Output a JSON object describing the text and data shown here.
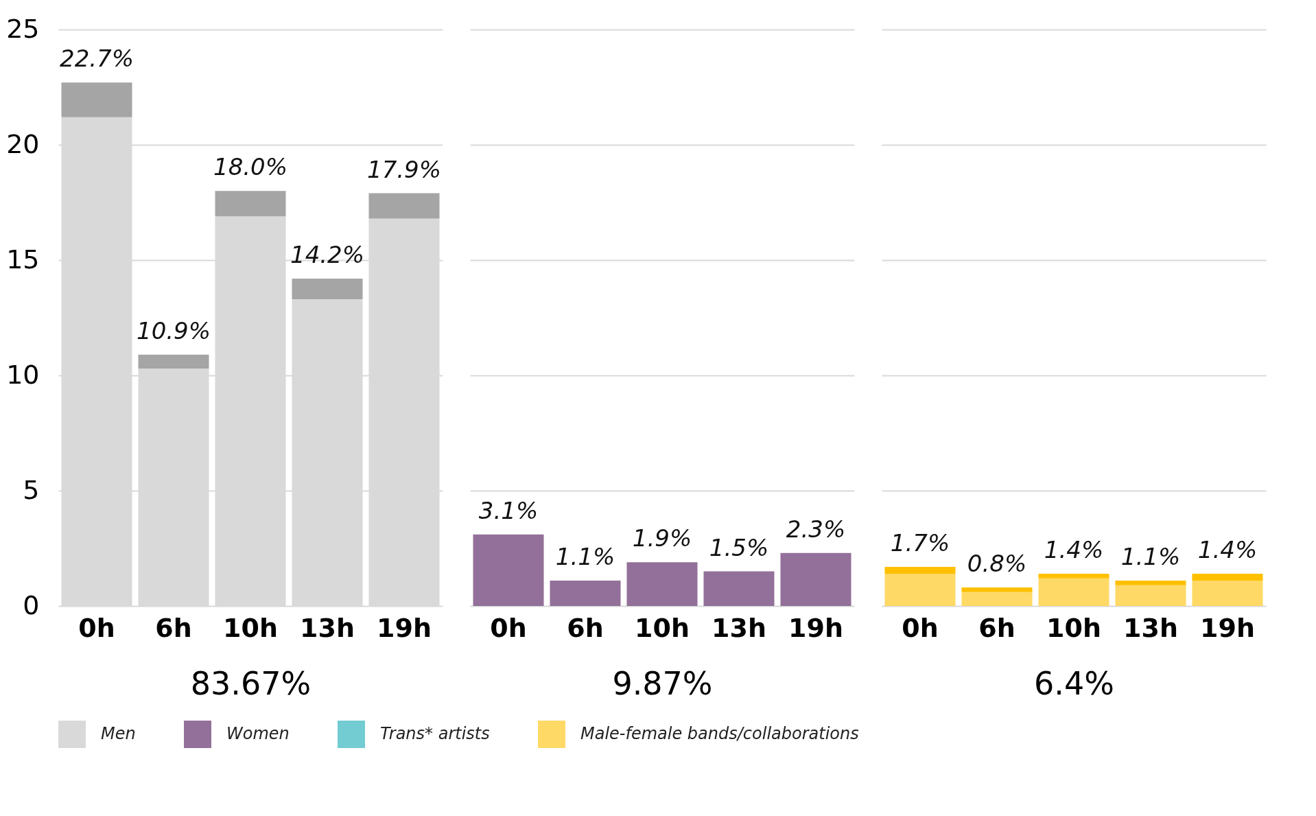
{
  "chart_data": [
    {
      "type": "bar",
      "stacked": true,
      "categories": [
        "0h",
        "6h",
        "10h",
        "13h",
        "19h"
      ],
      "series": [
        {
          "name": "Men",
          "color": "#d9d9d9",
          "values": [
            21.2,
            10.3,
            16.9,
            13.3,
            16.8
          ]
        },
        {
          "color": "#a5a5a5",
          "values": [
            1.5,
            0.6,
            1.1,
            0.9,
            1.1
          ]
        }
      ],
      "totals": [
        "22.7%",
        "10.9%",
        "18.0%",
        "14.2%",
        "17.9%"
      ],
      "xlabel": "83.67%",
      "ylim": [
        0,
        25
      ],
      "yticks": [
        0,
        5,
        10,
        15,
        20,
        25
      ],
      "grid": "y",
      "legend": "bottom"
    },
    {
      "type": "bar",
      "stacked": true,
      "categories": [
        "0h",
        "6h",
        "10h",
        "13h",
        "19h"
      ],
      "series": [
        {
          "name": "Women",
          "color": "#937099",
          "values": [
            3.1,
            1.1,
            1.9,
            1.5,
            2.3
          ]
        },
        {
          "name": "Trans* artists",
          "color": "#72ccd2",
          "values": [
            null,
            null,
            null,
            null,
            null
          ]
        }
      ],
      "totals": [
        "3.1%",
        "1.1%",
        "1.9%",
        "1.5%",
        "2.3%"
      ],
      "xlabel": "9.87%",
      "ylim": [
        0,
        25
      ],
      "yticks": [
        0,
        5,
        10,
        15,
        20,
        25
      ],
      "grid": "y",
      "legend": "bottom",
      "tick_labels": "x"
    },
    {
      "type": "bar",
      "stacked": true,
      "categories": [
        "0h",
        "6h",
        "10h",
        "13h",
        "19h"
      ],
      "series": [
        {
          "name": "Male-female bands/collaborations",
          "color": "#ffd966",
          "values": [
            1.4,
            0.6,
            1.2,
            0.9,
            1.1
          ]
        },
        {
          "color": "#ffc000",
          "values": [
            0.3,
            0.2,
            0.2,
            0.2,
            0.3
          ]
        }
      ],
      "totals": [
        "1.7%",
        "0.8%",
        "1.4%",
        "1.1%",
        "1.4%"
      ],
      "xlabel": "6.4%",
      "ylim": [
        0,
        25
      ],
      "yticks": [
        0,
        5,
        10,
        15,
        20,
        25
      ],
      "grid": "y",
      "legend": "bottom",
      "tick_labels": "x"
    }
  ]
}
